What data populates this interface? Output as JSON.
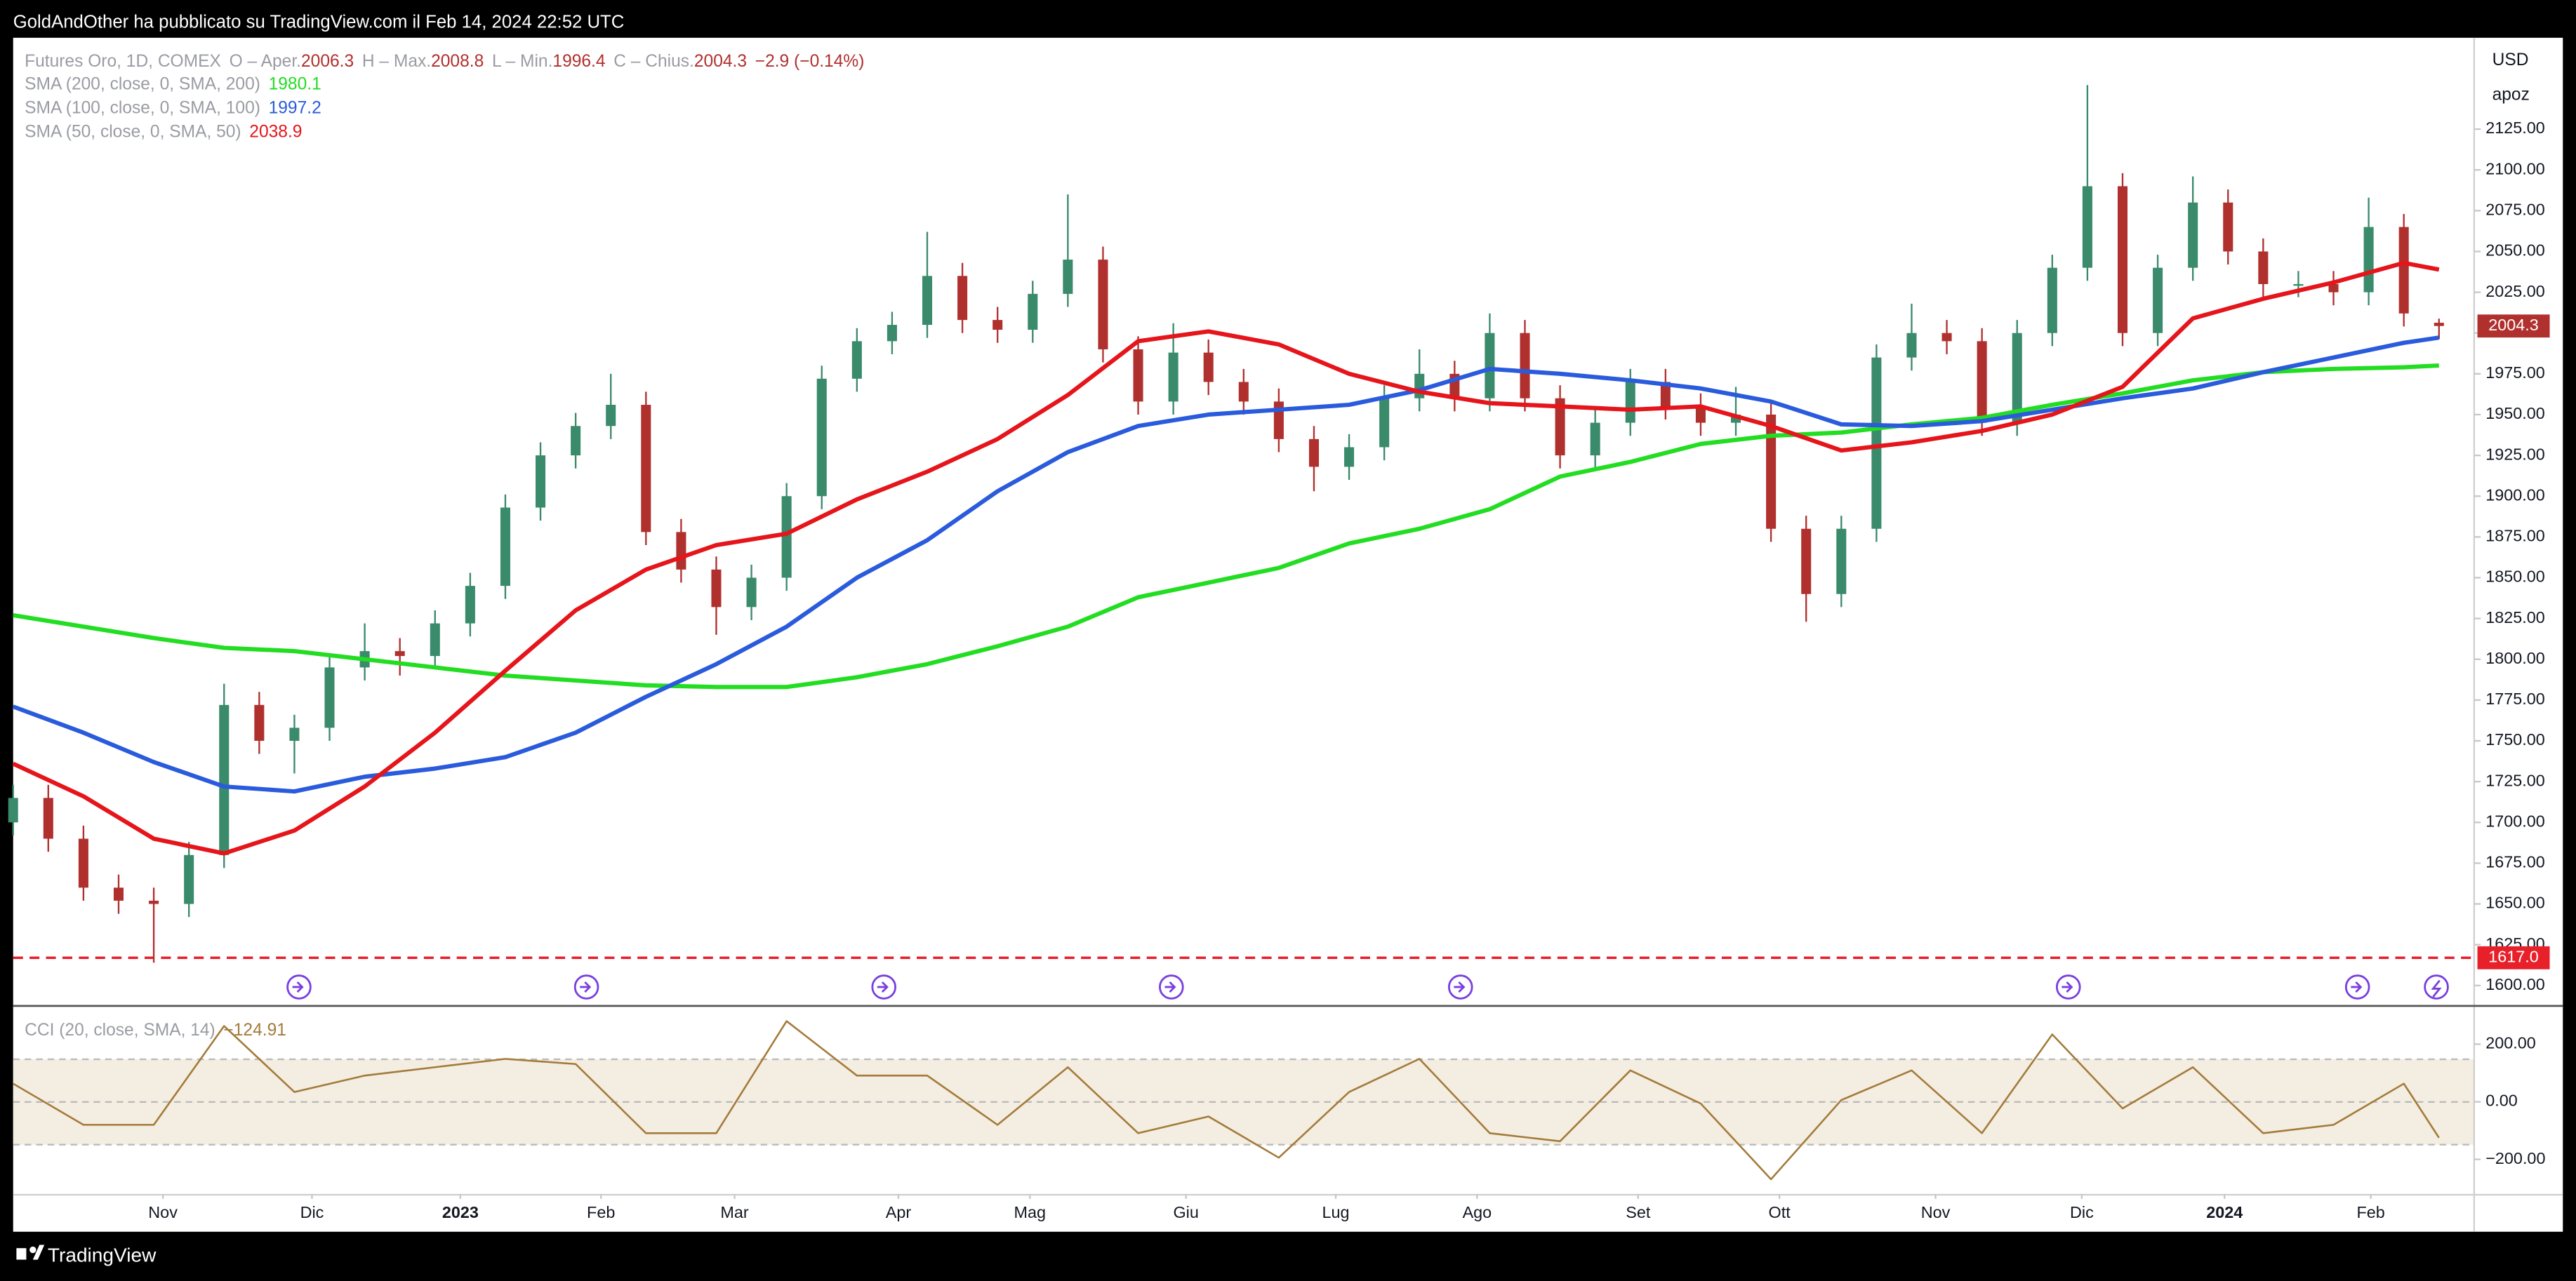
{
  "header": {
    "text": "GoldAndOther ha pubblicato su TradingView.com il Feb 14, 2024 22:52 UTC"
  },
  "footer": {
    "text": "TradingView"
  },
  "chart_data": {
    "type": "candlestick",
    "title": "Futures Oro, 1D, COMEX",
    "ohlc_labels": [
      "O – Aper.",
      "H – Max.",
      "L – Min.",
      "C – Chius."
    ],
    "change_label": "−2.9 (−0.14%)",
    "currency": "USD",
    "axis_note": "apoz",
    "up_color": "#3a8a6c",
    "down_color": "#b0302e",
    "x": [
      0,
      5,
      10,
      15,
      20,
      25,
      30,
      35,
      40,
      45,
      50,
      55,
      60,
      65,
      70,
      75,
      80,
      85,
      90,
      95,
      100,
      105,
      110,
      115,
      120,
      125,
      130,
      135,
      140,
      145,
      150,
      155,
      160,
      165,
      170,
      175,
      180,
      185,
      190,
      195,
      200,
      205,
      210,
      215,
      220,
      225,
      230,
      235,
      240,
      245,
      250,
      255,
      260,
      265,
      270,
      275,
      280,
      285,
      290,
      295,
      300,
      305,
      310,
      315,
      320,
      325,
      330,
      335,
      340,
      345
    ],
    "open": [
      1700,
      1715,
      1690,
      1660,
      1652,
      1650,
      1680,
      1772,
      1750,
      1758,
      1795,
      1805,
      1802,
      1822,
      1845,
      1893,
      1925,
      1943,
      1956,
      1878,
      1855,
      1832,
      1850,
      1900,
      1972,
      1995,
      2005,
      2035,
      2008,
      2002,
      2024,
      2045,
      1990,
      1958,
      1988,
      1970,
      1958,
      1935,
      1918,
      1930,
      1960,
      1975,
      1960,
      2000,
      1960,
      1925,
      1945,
      1970,
      1955,
      1945,
      1950,
      1880,
      1840,
      1880,
      1985,
      2000,
      1995,
      1945,
      2000,
      2040,
      2090,
      2000,
      2040,
      2080,
      2050,
      2030,
      2030,
      2025,
      2065,
      2006.3
    ],
    "high": [
      1723,
      1723,
      1698,
      1668,
      1660,
      1688,
      1785,
      1780,
      1766,
      1803,
      1822,
      1813,
      1830,
      1853,
      1901,
      1933,
      1951,
      1975,
      1964,
      1886,
      1863,
      1858,
      1908,
      1980,
      2003,
      2013,
      2062,
      2043,
      2016,
      2032,
      2085,
      2053,
      1998,
      2006,
      1996,
      1978,
      1966,
      1943,
      1938,
      1968,
      1990,
      1983,
      2012,
      2008,
      1968,
      1953,
      1978,
      1978,
      1963,
      1967,
      1958,
      1888,
      1888,
      1993,
      2018,
      2008,
      2003,
      2008,
      2048,
      2152,
      2098,
      2048,
      2096,
      2088,
      2058,
      2038,
      2038,
      2083,
      2073,
      2008.8
    ],
    "low": [
      1692,
      1682,
      1652,
      1644,
      1614,
      1642,
      1672,
      1742,
      1730,
      1750,
      1787,
      1790,
      1794,
      1814,
      1837,
      1885,
      1917,
      1935,
      1870,
      1847,
      1815,
      1824,
      1842,
      1892,
      1964,
      1987,
      1997,
      2000,
      1994,
      1994,
      2016,
      1982,
      1950,
      1950,
      1962,
      1950,
      1927,
      1903,
      1910,
      1922,
      1952,
      1952,
      1952,
      1952,
      1917,
      1917,
      1937,
      1947,
      1937,
      1937,
      1872,
      1823,
      1832,
      1872,
      1977,
      1987,
      1937,
      1937,
      1992,
      2032,
      1992,
      1992,
      2032,
      2042,
      2022,
      2022,
      2017,
      2017,
      2004,
      1996.4
    ],
    "close": [
      1715,
      1690,
      1660,
      1652,
      1650,
      1680,
      1772,
      1750,
      1758,
      1795,
      1805,
      1802,
      1822,
      1845,
      1893,
      1925,
      1943,
      1956,
      1878,
      1855,
      1832,
      1850,
      1900,
      1972,
      1995,
      2005,
      2035,
      2008,
      2002,
      2024,
      2045,
      1990,
      1958,
      1988,
      1970,
      1958,
      1935,
      1918,
      1930,
      1960,
      1975,
      1960,
      2000,
      1960,
      1925,
      1945,
      1970,
      1955,
      1945,
      1950,
      1880,
      1840,
      1880,
      1985,
      2000,
      1995,
      1945,
      2000,
      2040,
      2090,
      2000,
      2040,
      2080,
      2050,
      2030,
      2030,
      2025,
      2065,
      2012,
      2004.3
    ],
    "xlim": [
      0,
      350
    ],
    "xticks": [
      {
        "value": 21.3,
        "label": "Nov"
      },
      {
        "value": 42.5,
        "label": "Dic"
      },
      {
        "value": 63.6,
        "label": "2023"
      },
      {
        "value": 83.6,
        "label": "Feb"
      },
      {
        "value": 102.6,
        "label": "Mar"
      },
      {
        "value": 125.9,
        "label": "Apr"
      },
      {
        "value": 144.6,
        "label": "Mag"
      },
      {
        "value": 166.8,
        "label": "Giu"
      },
      {
        "value": 188.1,
        "label": "Lug"
      },
      {
        "value": 208.2,
        "label": "Ago"
      },
      {
        "value": 231.1,
        "label": "Set"
      },
      {
        "value": 251.2,
        "label": "Ott"
      },
      {
        "value": 273.4,
        "label": "Nov"
      },
      {
        "value": 294.2,
        "label": "Dic"
      },
      {
        "value": 314.5,
        "label": "2024"
      },
      {
        "value": 335.3,
        "label": "Feb"
      }
    ],
    "ylim": [
      1588,
      2181
    ],
    "yticks": [
      {
        "value": 1600,
        "label": "1600.00"
      },
      {
        "value": 1625,
        "label": "1625.00"
      },
      {
        "value": 1650,
        "label": "1650.00"
      },
      {
        "value": 1675,
        "label": "1675.00"
      },
      {
        "value": 1700,
        "label": "1700.00"
      },
      {
        "value": 1725,
        "label": "1725.00"
      },
      {
        "value": 1750,
        "label": "1750.00"
      },
      {
        "value": 1775,
        "label": "1775.00"
      },
      {
        "value": 1800,
        "label": "1800.00"
      },
      {
        "value": 1825,
        "label": "1825.00"
      },
      {
        "value": 1850,
        "label": "1850.00"
      },
      {
        "value": 1875,
        "label": "1875.00"
      },
      {
        "value": 1900,
        "label": "1900.00"
      },
      {
        "value": 1925,
        "label": "1925.00"
      },
      {
        "value": 1950,
        "label": "1950.00"
      },
      {
        "value": 1975,
        "label": "1975.00"
      },
      {
        "value": 2000,
        "label": "2000.00"
      },
      {
        "value": 2025,
        "label": "2025.00"
      },
      {
        "value": 2050,
        "label": "2050.00"
      },
      {
        "value": 2075,
        "label": "2075.00"
      },
      {
        "value": 2100,
        "label": "2100.00"
      },
      {
        "value": 2125,
        "label": "2125.00"
      }
    ],
    "grid": false,
    "level": {
      "value": 1617,
      "label": "1617.0",
      "color": "#e8202a"
    },
    "series": [
      {
        "name": "SMA (200, close, 0, SMA, 200)",
        "color": "#22dd22",
        "x": [
          0,
          10,
          20,
          30,
          40,
          50,
          60,
          70,
          80,
          90,
          100,
          110,
          120,
          130,
          140,
          150,
          160,
          170,
          180,
          190,
          200,
          210,
          220,
          230,
          240,
          250,
          260,
          270,
          280,
          290,
          300,
          310,
          320,
          330,
          340,
          345
        ],
        "values": [
          1827,
          1820,
          1813,
          1807,
          1805,
          1800,
          1795,
          1790,
          1787,
          1784,
          1783,
          1783,
          1789,
          1797,
          1808,
          1820,
          1838,
          1847,
          1856,
          1871,
          1880,
          1892,
          1912,
          1921,
          1932,
          1937,
          1939,
          1944,
          1948,
          1956,
          1963,
          1971,
          1976,
          1978,
          1979,
          1980.1
        ]
      },
      {
        "name": "SMA (100, close, 0, SMA, 100)",
        "color": "#2a5bdc",
        "x": [
          0,
          10,
          20,
          30,
          40,
          50,
          60,
          70,
          80,
          90,
          100,
          110,
          120,
          130,
          140,
          150,
          160,
          170,
          180,
          190,
          200,
          210,
          220,
          230,
          240,
          250,
          260,
          270,
          280,
          290,
          300,
          310,
          320,
          330,
          340,
          345
        ],
        "values": [
          1771,
          1755,
          1737,
          1722,
          1719,
          1728,
          1733,
          1740,
          1755,
          1777,
          1797,
          1820,
          1850,
          1873,
          1903,
          1927,
          1943,
          1950,
          1953,
          1956,
          1965,
          1978,
          1975,
          1971,
          1966,
          1958,
          1944,
          1943,
          1946,
          1953,
          1960,
          1966,
          1976,
          1985,
          1994,
          1997.2
        ]
      },
      {
        "name": "SMA (50, close, 0, SMA, 50)",
        "color": "#e5151b",
        "x": [
          0,
          10,
          20,
          30,
          40,
          50,
          60,
          70,
          80,
          90,
          100,
          110,
          120,
          130,
          140,
          150,
          160,
          170,
          180,
          190,
          200,
          210,
          220,
          230,
          240,
          250,
          260,
          270,
          280,
          290,
          300,
          310,
          320,
          330,
          340,
          345
        ],
        "values": [
          1736,
          1716,
          1690,
          1681,
          1695,
          1722,
          1755,
          1793,
          1830,
          1855,
          1870,
          1877,
          1898,
          1915,
          1935,
          1962,
          1995,
          2001,
          1993,
          1975,
          1964,
          1957,
          1955,
          1953,
          1955,
          1943,
          1928,
          1933,
          1940,
          1950,
          1967,
          2009,
          2021,
          2031,
          2043,
          2038.9
        ]
      }
    ],
    "indicator": {
      "type": "line",
      "name": "CCI (20, close, SMA, 14)",
      "color": "#a37b3a",
      "last_value_label": "−124.91",
      "x": [
        0,
        10,
        20,
        30,
        40,
        50,
        60,
        70,
        80,
        90,
        100,
        110,
        120,
        130,
        140,
        150,
        160,
        170,
        180,
        190,
        200,
        210,
        220,
        230,
        240,
        250,
        260,
        270,
        280,
        290,
        300,
        310,
        320,
        330,
        340,
        345
      ],
      "values": [
        63,
        -80,
        -80,
        263,
        34,
        91,
        120,
        149,
        131,
        -109,
        -109,
        280,
        91,
        91,
        -80,
        120,
        -109,
        -51,
        -194,
        34,
        149,
        -109,
        -137,
        109,
        -6,
        -269,
        6,
        109,
        -109,
        234,
        -23,
        120,
        -109,
        -80,
        63,
        -124.91
      ],
      "ylim": [
        -320,
        330
      ],
      "yticks": [
        {
          "value": 200,
          "label": "200.00"
        },
        {
          "value": 0,
          "label": "0.00"
        },
        {
          "value": -200,
          "label": "−200.00"
        }
      ]
    }
  }
}
